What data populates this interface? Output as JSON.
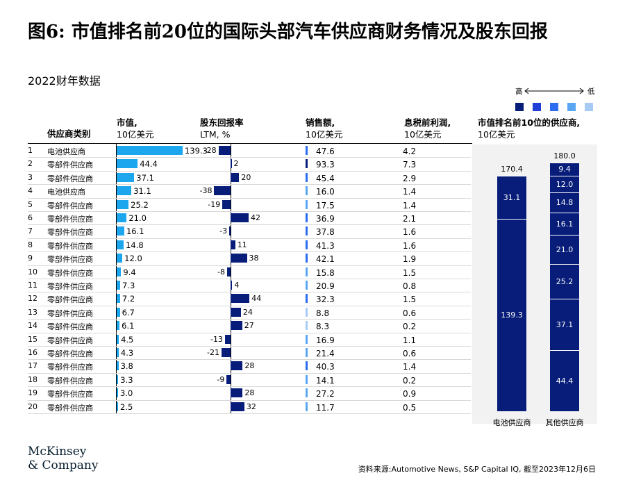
{
  "title": "图6: 市值排名前20位的国际头部汽车供应商财务情况及股东回报",
  "subtitle": "2022财年数据",
  "legend": {
    "high": "高",
    "low": "低",
    "colors": [
      "#071d79",
      "#1f3fd6",
      "#2b6cf0",
      "#5aa6f2",
      "#a8cbf5"
    ]
  },
  "headers": {
    "category": "供应商类别",
    "market_cap": [
      "市值,",
      "10亿美元"
    ],
    "tsr": [
      "股东回报率",
      "LTM, %"
    ],
    "sales": [
      "销售额,",
      "10亿美元"
    ],
    "ebit": [
      "息税前利润,",
      "10亿美元"
    ],
    "top10": [
      "市值排名前10位的供应商,",
      "10亿美元"
    ]
  },
  "rows": [
    {
      "rank": "1",
      "category": "电池供应商",
      "market_cap": "139.3",
      "tsr": "-28",
      "sales": "47.6",
      "ebit": "4.2",
      "sales_color": "#2b6cf0"
    },
    {
      "rank": "2",
      "category": "零部件供应商",
      "market_cap": "44.4",
      "tsr": "2",
      "sales": "93.3",
      "ebit": "7.3",
      "sales_color": "#071d79"
    },
    {
      "rank": "3",
      "category": "零部件供应商",
      "market_cap": "37.1",
      "tsr": "20",
      "sales": "45.4",
      "ebit": "2.9",
      "sales_color": "#2b6cf0"
    },
    {
      "rank": "4",
      "category": "电池供应商",
      "market_cap": "31.1",
      "tsr": "-38",
      "sales": "16.0",
      "ebit": "1.4",
      "sales_color": "#5aa6f2"
    },
    {
      "rank": "5",
      "category": "零部件供应商",
      "market_cap": "25.2",
      "tsr": "-19",
      "sales": "17.5",
      "ebit": "1.4",
      "sales_color": "#5aa6f2"
    },
    {
      "rank": "6",
      "category": "零部件供应商",
      "market_cap": "21.0",
      "tsr": "42",
      "sales": "36.9",
      "ebit": "2.1",
      "sales_color": "#2b6cf0"
    },
    {
      "rank": "7",
      "category": "零部件供应商",
      "market_cap": "16.1",
      "tsr": "-3",
      "sales": "37.8",
      "ebit": "1.6",
      "sales_color": "#2b6cf0"
    },
    {
      "rank": "8",
      "category": "零部件供应商",
      "market_cap": "14.8",
      "tsr": "11",
      "sales": "41.3",
      "ebit": "1.6",
      "sales_color": "#2b6cf0"
    },
    {
      "rank": "9",
      "category": "零部件供应商",
      "market_cap": "12.0",
      "tsr": "38",
      "sales": "42.1",
      "ebit": "1.9",
      "sales_color": "#2b6cf0"
    },
    {
      "rank": "10",
      "category": "零部件供应商",
      "market_cap": "9.4",
      "tsr": "-8",
      "sales": "15.8",
      "ebit": "1.5",
      "sales_color": "#5aa6f2"
    },
    {
      "rank": "11",
      "category": "零部件供应商",
      "market_cap": "7.3",
      "tsr": "4",
      "sales": "20.9",
      "ebit": "0.8",
      "sales_color": "#5aa6f2"
    },
    {
      "rank": "12",
      "category": "零部件供应商",
      "market_cap": "7.2",
      "tsr": "44",
      "sales": "32.3",
      "ebit": "1.5",
      "sales_color": "#2b6cf0"
    },
    {
      "rank": "13",
      "category": "零部件供应商",
      "market_cap": "6.7",
      "tsr": "24",
      "sales": "8.8",
      "ebit": "0.6",
      "sales_color": "#a8cbf5"
    },
    {
      "rank": "14",
      "category": "零部件供应商",
      "market_cap": "6.1",
      "tsr": "27",
      "sales": "8.3",
      "ebit": "0.2",
      "sales_color": "#a8cbf5"
    },
    {
      "rank": "15",
      "category": "零部件供应商",
      "market_cap": "4.5",
      "tsr": "-13",
      "sales": "16.9",
      "ebit": "1.1",
      "sales_color": "#5aa6f2"
    },
    {
      "rank": "16",
      "category": "零部件供应商",
      "market_cap": "4.3",
      "tsr": "-21",
      "sales": "21.4",
      "ebit": "0.6",
      "sales_color": "#5aa6f2"
    },
    {
      "rank": "17",
      "category": "零部件供应商",
      "market_cap": "3.8",
      "tsr": "28",
      "sales": "40.3",
      "ebit": "1.4",
      "sales_color": "#2b6cf0"
    },
    {
      "rank": "18",
      "category": "零部件供应商",
      "market_cap": "3.3",
      "tsr": "-9",
      "sales": "14.1",
      "ebit": "0.2",
      "sales_color": "#5aa6f2"
    },
    {
      "rank": "19",
      "category": "零部件供应商",
      "market_cap": "3.0",
      "tsr": "28",
      "sales": "27.2",
      "ebit": "0.9",
      "sales_color": "#5aa6f2"
    },
    {
      "rank": "20",
      "category": "零部件供应商",
      "market_cap": "2.5",
      "tsr": "32",
      "sales": "11.7",
      "ebit": "0.5",
      "sales_color": "#5aa6f2"
    }
  ],
  "chart_data": {
    "type": "bar",
    "title": "市值排名前10位的供应商,10亿美元",
    "categories": [
      "电池供应商",
      "其他供应商"
    ],
    "series": [
      {
        "category": "电池供应商",
        "total": "170.4",
        "segments": [
          "139.3",
          "31.1"
        ]
      },
      {
        "category": "其他供应商",
        "total": "180.0",
        "segments": [
          "44.4",
          "37.1",
          "25.2",
          "21.0",
          "16.1",
          "14.8",
          "12.0",
          "9.4"
        ]
      }
    ],
    "ylim": [
      0,
      180
    ]
  },
  "footer": {
    "source": "资料来源:Automotive News, S&P Capital IQ, 截至2023年12月6日",
    "logo_line1": "McKinsey",
    "logo_line2": "& Company"
  }
}
